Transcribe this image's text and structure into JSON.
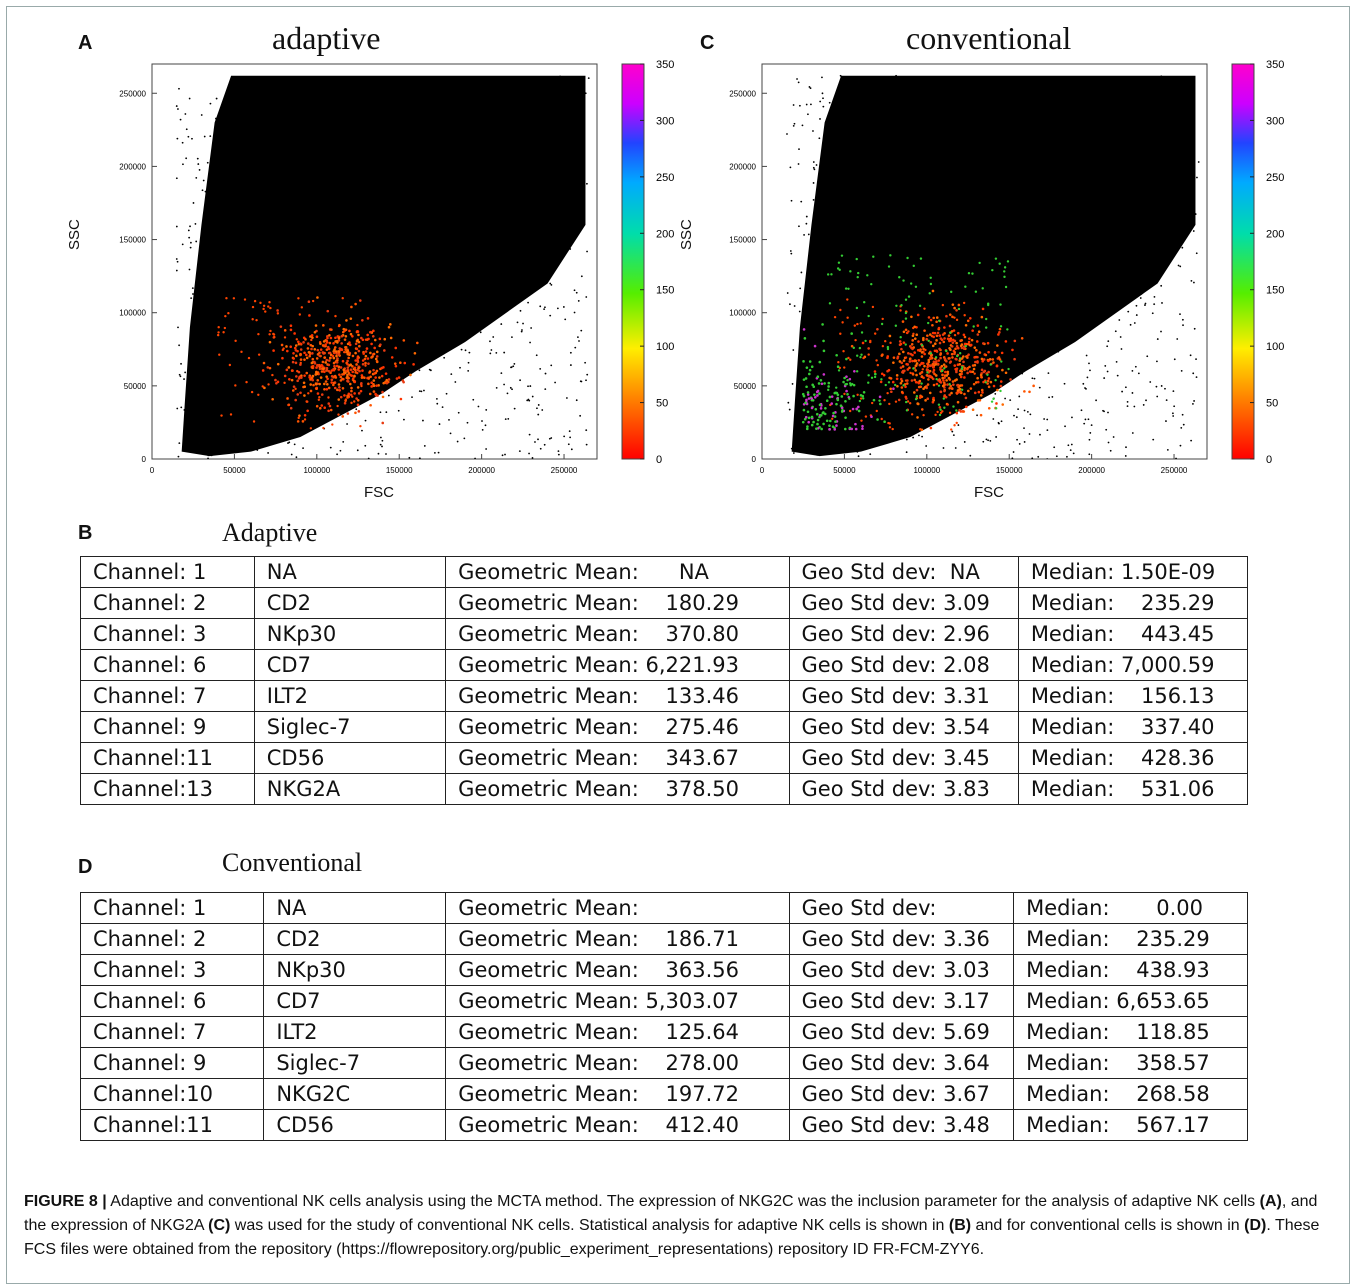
{
  "panels": {
    "A": {
      "letter": "A",
      "title": "adaptive",
      "xlabel": "FSC",
      "ylabel": "SSC"
    },
    "C": {
      "letter": "C",
      "title": "conventional",
      "xlabel": "FSC",
      "ylabel": "SSC"
    },
    "B": {
      "letter": "B",
      "title": "Adaptive"
    },
    "D": {
      "letter": "D",
      "title": "Conventional"
    }
  },
  "chart_data": [
    {
      "type": "scatter",
      "title": "adaptive",
      "xlabel": "FSC",
      "ylabel": "SSC",
      "x_ticks": [
        "0",
        "50000",
        "100000",
        "150000",
        "200000",
        "250000"
      ],
      "y_ticks": [
        "0",
        "50000",
        "100000",
        "150000",
        "200000",
        "250000"
      ],
      "xlim": [
        0,
        270000
      ],
      "ylim": [
        0,
        270000
      ],
      "colorbar_ticks": [
        "0",
        "50",
        "100",
        "150",
        "200",
        "250",
        "300",
        "350"
      ],
      "colorbar_range": [
        0,
        350
      ]
    },
    {
      "type": "scatter",
      "title": "conventional",
      "xlabel": "FSC",
      "ylabel": "SSC",
      "x_ticks": [
        "0",
        "50000",
        "100000",
        "150000",
        "200000",
        "250000"
      ],
      "y_ticks": [
        "0",
        "50000",
        "100000",
        "150000",
        "200000",
        "250000"
      ],
      "xlim": [
        0,
        270000
      ],
      "ylim": [
        0,
        270000
      ],
      "colorbar_ticks": [
        "0",
        "50",
        "100",
        "150",
        "200",
        "250",
        "300",
        "350"
      ],
      "colorbar_range": [
        0,
        350
      ]
    }
  ],
  "table_B": [
    [
      "Channel: 1",
      "NA",
      "Geometric Mean:      NA",
      "Geo Std dev:  NA",
      "Median: 1.50E-09"
    ],
    [
      "Channel: 2",
      "CD2",
      "Geometric Mean:    180.29",
      "Geo Std dev: 3.09",
      "Median:    235.29"
    ],
    [
      "Channel: 3",
      "NKp30",
      "Geometric Mean:    370.80",
      "Geo Std dev: 2.96",
      "Median:    443.45"
    ],
    [
      "Channel: 6",
      "CD7",
      "Geometric Mean: 6,221.93",
      "Geo Std dev: 2.08",
      "Median: 7,000.59"
    ],
    [
      "Channel: 7",
      "ILT2",
      "Geometric Mean:    133.46",
      "Geo Std dev: 3.31",
      "Median:    156.13"
    ],
    [
      "Channel: 9",
      "Siglec-7",
      "Geometric Mean:    275.46",
      "Geo Std dev: 3.54",
      "Median:    337.40"
    ],
    [
      "Channel:11",
      "CD56",
      "Geometric Mean:    343.67",
      "Geo Std dev: 3.45",
      "Median:    428.36"
    ],
    [
      "Channel:13",
      "NKG2A",
      "Geometric Mean:    378.50",
      "Geo Std dev: 3.83",
      "Median:    531.06"
    ]
  ],
  "table_D": [
    [
      "Channel: 1",
      "NA",
      "Geometric Mean:",
      "Geo Std dev:",
      "Median:       0.00"
    ],
    [
      "Channel: 2",
      "CD2",
      "Geometric Mean:    186.71",
      "Geo Std dev: 3.36",
      "Median:    235.29"
    ],
    [
      "Channel: 3",
      "NKp30",
      "Geometric Mean:    363.56",
      "Geo Std dev: 3.03",
      "Median:    438.93"
    ],
    [
      "Channel: 6",
      "CD7",
      "Geometric Mean: 5,303.07",
      "Geo Std dev: 3.17",
      "Median: 6,653.65"
    ],
    [
      "Channel: 7",
      "ILT2",
      "Geometric Mean:    125.64",
      "Geo Std dev: 5.69",
      "Median:    118.85"
    ],
    [
      "Channel: 9",
      "Siglec-7",
      "Geometric Mean:    278.00",
      "Geo Std dev: 3.64",
      "Median:    358.57"
    ],
    [
      "Channel:10",
      "NKG2C",
      "Geometric Mean:    197.72",
      "Geo Std dev: 3.67",
      "Median:    268.58"
    ],
    [
      "Channel:11",
      "CD56",
      "Geometric Mean:    412.40",
      "Geo Std dev: 3.48",
      "Median:    567.17"
    ]
  ],
  "caption": {
    "label": "FIGURE 8 |",
    "parts": [
      " Adaptive and conventional NK cells analysis using the MCTA method. The expression of NKG2C was the inclusion parameter for the analysis of adaptive NK cells ",
      "(A)",
      ", and the expression of NKG2A ",
      "(C)",
      " was used for the study of conventional NK cells. Statistical analysis for adaptive NK cells is shown in ",
      "(B)",
      " and for conventional cells is shown in ",
      "(D)",
      ". These FCS files were obtained from the repository (https://flowrepository.org/public_experiment_representations) repository ID FR-FCM-ZYY6."
    ]
  }
}
